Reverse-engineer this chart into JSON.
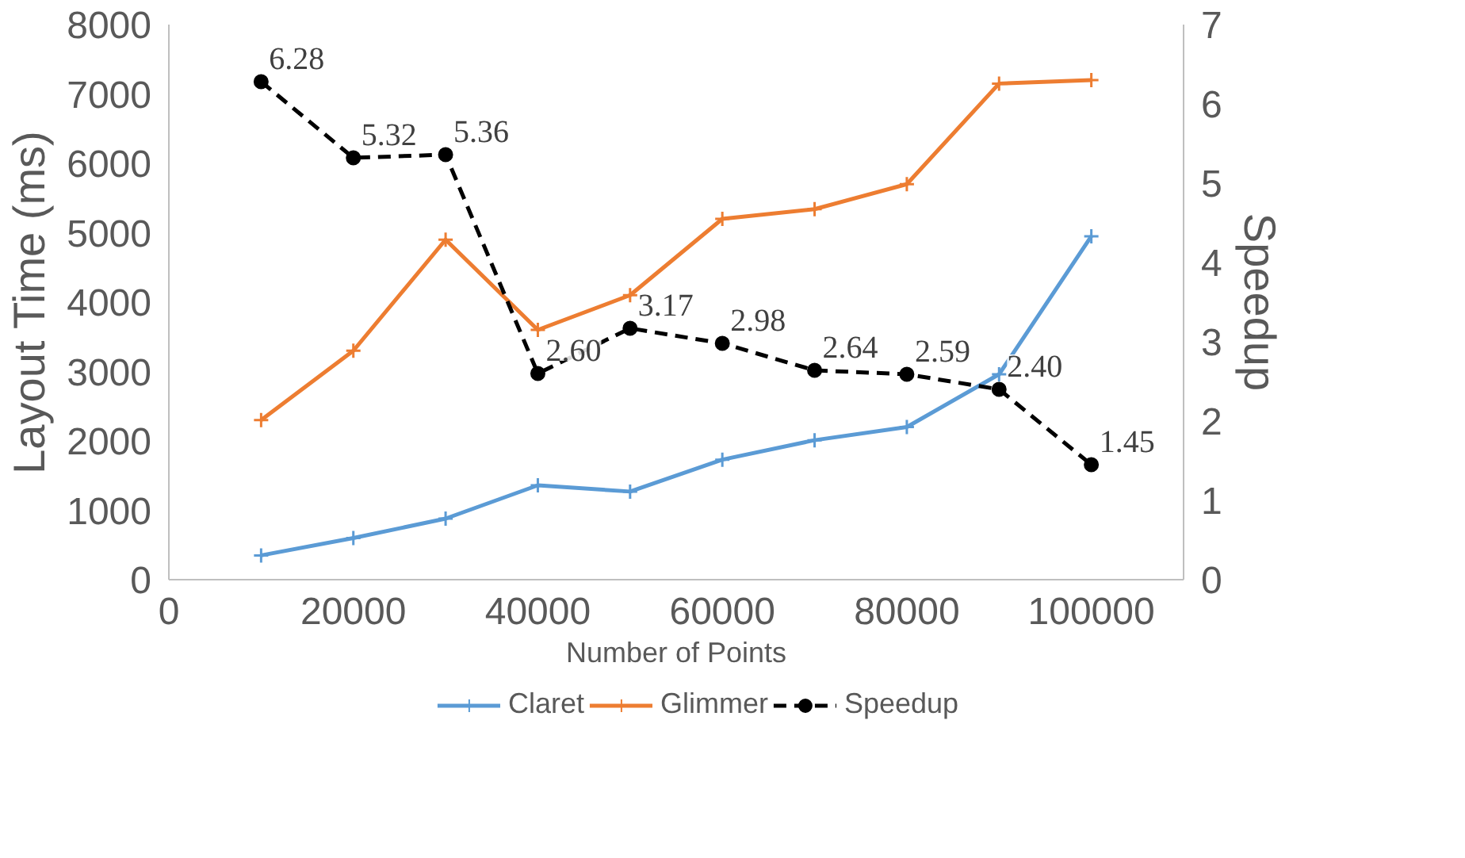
{
  "chart_data": {
    "type": "line",
    "xlabel": "Number of Points",
    "ylabel": "Layout Time (ms)",
    "y2label": "Speedup",
    "x": [
      10000,
      20000,
      30000,
      40000,
      50000,
      60000,
      70000,
      80000,
      90000,
      100000
    ],
    "series": [
      {
        "name": "Claret",
        "color": "#5b9bd5",
        "marker": "cross",
        "values": [
          350,
          600,
          880,
          1360,
          1270,
          1730,
          2010,
          2200,
          2960,
          4950
        ]
      },
      {
        "name": "Glimmer",
        "color": "#ed7d31",
        "marker": "cross",
        "values": [
          2300,
          3300,
          4900,
          3600,
          4100,
          5200,
          5340,
          5700,
          7150,
          7200
        ]
      },
      {
        "name": "Speedup",
        "color": "#000000",
        "marker": "circle",
        "line_style": "dashed",
        "axis": "y2",
        "values": [
          6.28,
          5.32,
          5.36,
          2.6,
          3.17,
          2.98,
          2.64,
          2.59,
          2.4,
          1.45
        ],
        "value_labels": [
          "6.28",
          "5.32",
          "5.36",
          "2.60",
          "3.17",
          "2.98",
          "2.64",
          "2.59",
          "2.40",
          "1.45"
        ]
      }
    ],
    "xlim": [
      0,
      110000
    ],
    "xticks": [
      0,
      20000,
      40000,
      60000,
      80000,
      100000
    ],
    "ylim": [
      0,
      8000
    ],
    "yticks": [
      0,
      1000,
      2000,
      3000,
      4000,
      5000,
      6000,
      7000,
      8000
    ],
    "y2lim": [
      0,
      7
    ],
    "y2ticks": [
      0,
      1,
      2,
      3,
      4,
      5,
      6,
      7
    ],
    "grid": false,
    "legend": "bottom"
  }
}
